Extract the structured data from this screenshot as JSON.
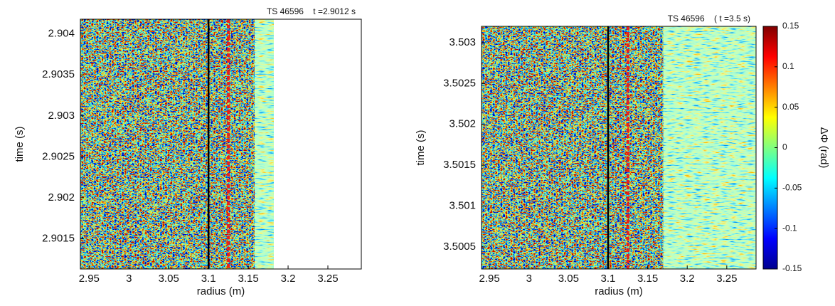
{
  "chart_data": [
    {
      "type": "heatmap",
      "title": "TS 46596    t =2.9012 s",
      "xlabel": "radius (m)",
      "ylabel": "time (s)",
      "colormap": "jet",
      "xlim": [
        2.939,
        3.292
      ],
      "xticks": [
        2.95,
        3,
        3.05,
        3.1,
        3.15,
        3.2,
        3.25
      ],
      "ylim": [
        2.90113,
        2.90418
      ],
      "yticks": [
        2.9015,
        2.902,
        2.9025,
        2.903,
        2.9035,
        2.904
      ],
      "data_range": [
        2.939,
        3.182
      ],
      "calm_region": [
        3.158,
        3.182
      ],
      "vlines": [
        {
          "x": 3.1,
          "color": "#000000",
          "style": "solid"
        },
        {
          "x": 3.125,
          "color": "#e8201c",
          "style": "dashed"
        }
      ]
    },
    {
      "type": "heatmap",
      "title": "TS 46596    ( t =3.5 s)",
      "xlabel": "radius (m)",
      "ylabel": "time (s)",
      "colormap": "jet",
      "xlim": [
        2.94,
        3.287
      ],
      "xticks": [
        2.95,
        3,
        3.05,
        3.1,
        3.15,
        3.2,
        3.25
      ],
      "ylim": [
        3.50023,
        3.5032
      ],
      "yticks": [
        3.5005,
        3.501,
        3.5015,
        3.502,
        3.5025,
        3.503
      ],
      "data_range": [
        2.94,
        3.287
      ],
      "calm_region": [
        3.17,
        3.287
      ],
      "vlines": [
        {
          "x": 3.1,
          "color": "#000000",
          "style": "solid"
        },
        {
          "x": 3.125,
          "color": "#e8201c",
          "style": "dashed"
        }
      ],
      "colorbar": {
        "label": "ΔΦ (rad)",
        "clim": [
          -0.15,
          0.15
        ],
        "ticks": [
          -0.15,
          -0.1,
          -0.05,
          0,
          0.05,
          0.1,
          0.15
        ]
      }
    }
  ]
}
